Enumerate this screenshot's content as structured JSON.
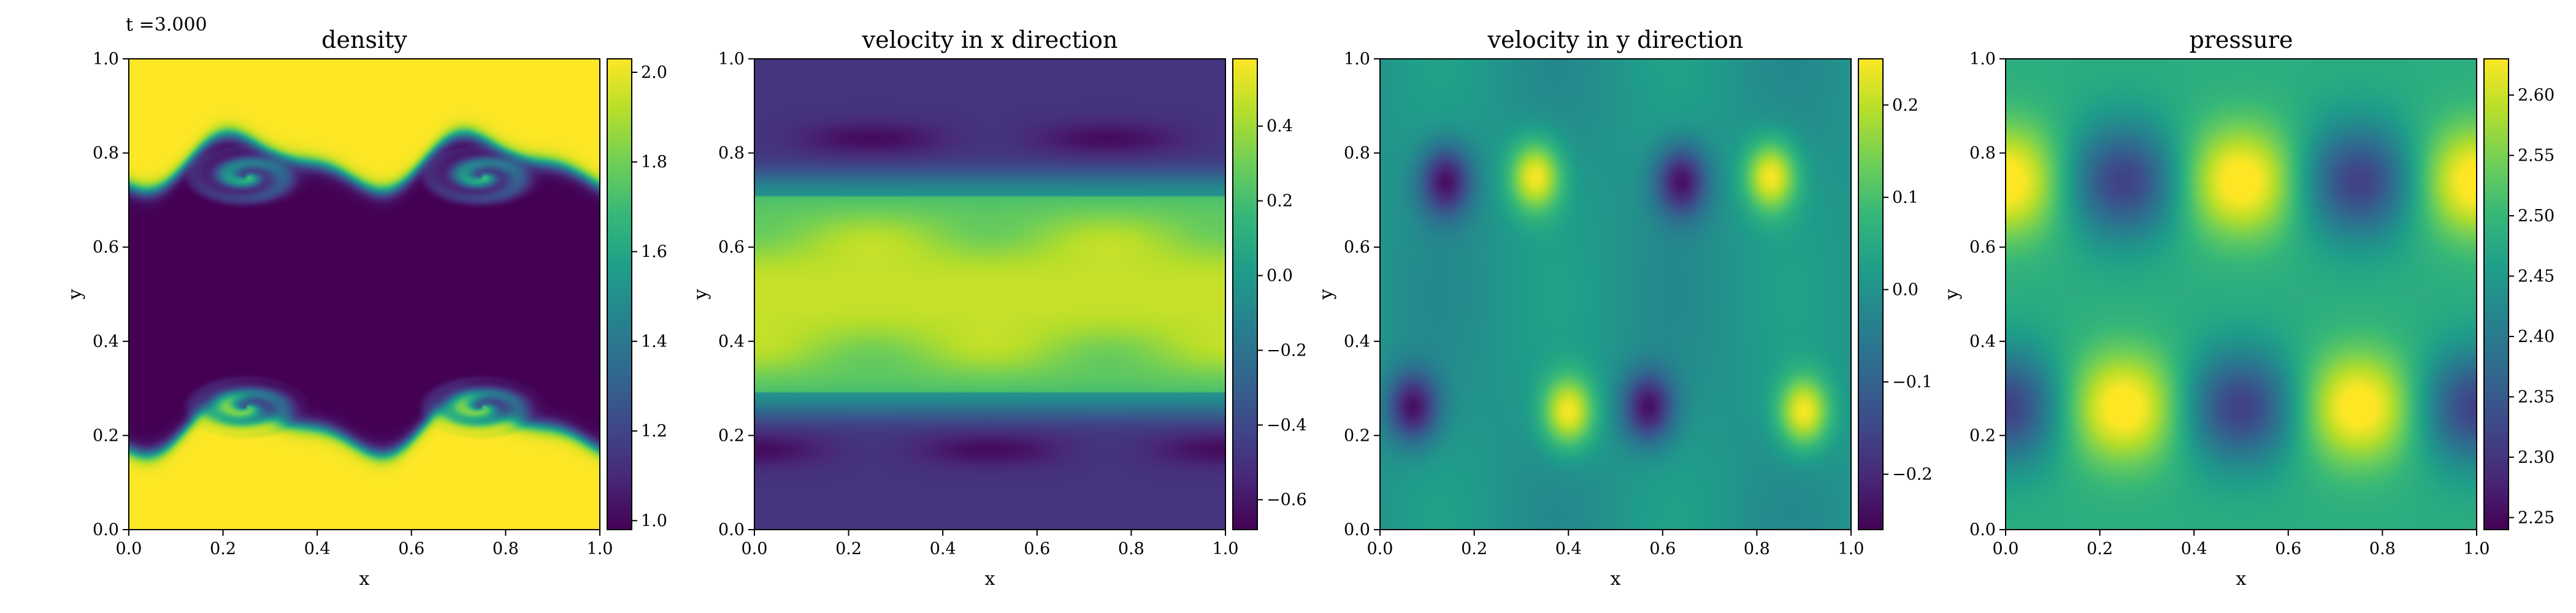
{
  "time_label": "t =3.000",
  "colormap": [
    "#440154",
    "#482878",
    "#3e4989",
    "#31688e",
    "#26828e",
    "#1f9e89",
    "#35b779",
    "#6ece58",
    "#b5de2b",
    "#fde725"
  ],
  "chart_data": [
    {
      "type": "heatmap",
      "field": "density",
      "title": "density",
      "xlabel": "x",
      "ylabel": "y",
      "xlim": [
        0,
        1
      ],
      "ylim": [
        0,
        1
      ],
      "x_ticks": [
        "0.0",
        "0.2",
        "0.4",
        "0.6",
        "0.8",
        "1.0"
      ],
      "y_ticks": [
        "0.0",
        "0.2",
        "0.4",
        "0.6",
        "0.8",
        "1.0"
      ],
      "colorbar": {
        "range": [
          0.98,
          2.03
        ],
        "ticks": [
          1.0,
          1.2,
          1.4,
          1.6,
          1.8,
          2.0
        ],
        "tick_labels": [
          "1.0",
          "1.2",
          "1.4",
          "1.6",
          "1.8",
          "2.0"
        ]
      }
    },
    {
      "type": "heatmap",
      "field": "velocity_x",
      "title": "velocity in x direction",
      "xlabel": "x",
      "ylabel": "y",
      "xlim": [
        0,
        1
      ],
      "ylim": [
        0,
        1
      ],
      "x_ticks": [
        "0.0",
        "0.2",
        "0.4",
        "0.6",
        "0.8",
        "1.0"
      ],
      "y_ticks": [
        "0.0",
        "0.2",
        "0.4",
        "0.6",
        "0.8",
        "1.0"
      ],
      "colorbar": {
        "range": [
          -0.68,
          0.58
        ],
        "ticks": [
          0.4,
          0.2,
          0.0,
          -0.2,
          -0.4,
          -0.6
        ],
        "tick_labels": [
          "0.4",
          "0.2",
          "0.0",
          "−0.2",
          "−0.4",
          "−0.6"
        ]
      }
    },
    {
      "type": "heatmap",
      "field": "velocity_y",
      "title": "velocity in y direction",
      "xlabel": "x",
      "ylabel": "y",
      "xlim": [
        0,
        1
      ],
      "ylim": [
        0,
        1
      ],
      "x_ticks": [
        "0.0",
        "0.2",
        "0.4",
        "0.6",
        "0.8",
        "1.0"
      ],
      "y_ticks": [
        "0.0",
        "0.2",
        "0.4",
        "0.6",
        "0.8",
        "1.0"
      ],
      "colorbar": {
        "range": [
          -0.26,
          0.25
        ],
        "ticks": [
          0.2,
          0.1,
          0.0,
          -0.1,
          -0.2
        ],
        "tick_labels": [
          "0.2",
          "0.1",
          "0.0",
          "−0.1",
          "−0.2"
        ]
      }
    },
    {
      "type": "heatmap",
      "field": "pressure",
      "title": "pressure",
      "xlabel": "x",
      "ylabel": "y",
      "xlim": [
        0,
        1
      ],
      "ylim": [
        0,
        1
      ],
      "x_ticks": [
        "0.0",
        "0.2",
        "0.4",
        "0.6",
        "0.8",
        "1.0"
      ],
      "y_ticks": [
        "0.0",
        "0.2",
        "0.4",
        "0.6",
        "0.8",
        "1.0"
      ],
      "colorbar": {
        "range": [
          2.24,
          2.63
        ],
        "ticks": [
          2.6,
          2.55,
          2.5,
          2.45,
          2.4,
          2.35,
          2.3,
          2.25
        ],
        "tick_labels": [
          "2.60",
          "2.55",
          "2.50",
          "2.45",
          "2.40",
          "2.35",
          "2.30",
          "2.25"
        ]
      }
    }
  ]
}
